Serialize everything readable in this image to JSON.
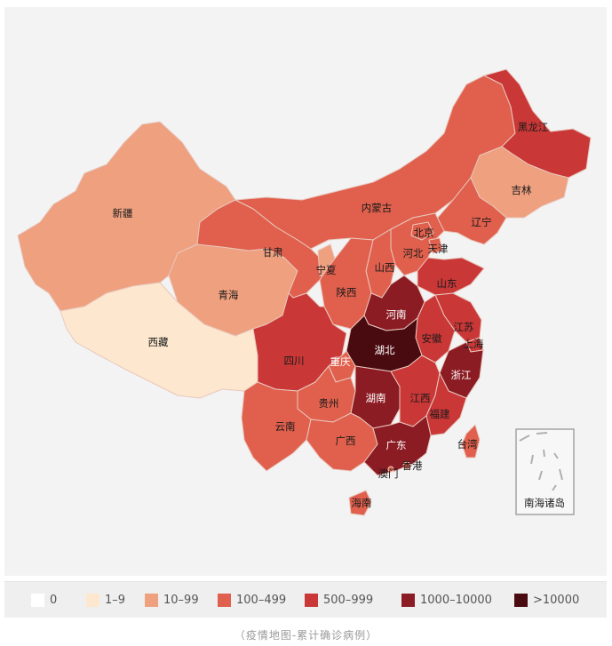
{
  "colors": {
    "b0": "#ffffff",
    "b1": "#fde8cf",
    "b2": "#eea07f",
    "b3": "#e0604d",
    "b4": "#c93737",
    "b5": "#8c1c24",
    "b6": "#4a0b10",
    "border": "#e9c7bd",
    "frame": "#f3f3f3"
  },
  "provinces": {
    "xinjiang": "新疆",
    "xizang": "西藏",
    "qinghai": "青海",
    "gansu": "甘肃",
    "neimenggu": "内蒙古",
    "heilongjiang": "黑龙江",
    "jilin": "吉林",
    "liaoning": "辽宁",
    "beijing": "北京",
    "tianjin": "天津",
    "hebei": "河北",
    "shanxi": "山西",
    "ningxia": "宁夏",
    "shaanxi": "陕西",
    "shandong": "山东",
    "henan": "河南",
    "jiangsu": "江苏",
    "anhui": "安徽",
    "shanghai": "上海",
    "hubei": "湖北",
    "zhejiang": "浙江",
    "sichuan": "四川",
    "chongqing": "重庆",
    "guizhou": "贵州",
    "hunan": "湖南",
    "jiangxi": "江西",
    "fujian": "福建",
    "yunnan": "云南",
    "guangxi": "广西",
    "guangdong": "广东",
    "xianggang": "香港",
    "aomen": "澳门",
    "taiwan": "台湾",
    "hainan": "海南",
    "nanhai": "南海诸岛"
  },
  "legend": [
    {
      "label": "0",
      "color": "#ffffff"
    },
    {
      "label": "1–9",
      "color": "#fde8cf"
    },
    {
      "label": "10–99",
      "color": "#eea07f"
    },
    {
      "label": "100–499",
      "color": "#e0604d"
    },
    {
      "label": "500–999",
      "color": "#c93737"
    },
    {
      "label": "1000–10000",
      "color": "#8c1c24"
    },
    {
      "label": ">10000",
      "color": "#4a0b10"
    }
  ],
  "caption": "（疫情地图-累计确诊病例）"
}
